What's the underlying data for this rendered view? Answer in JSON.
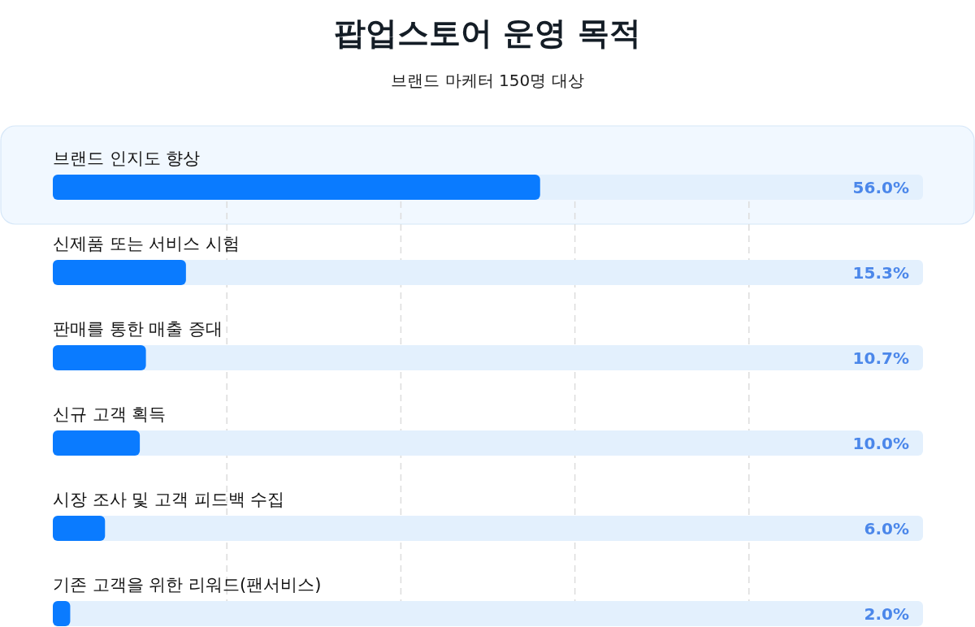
{
  "chart_data": {
    "type": "bar",
    "orientation": "horizontal",
    "title": "팝업스토어 운영 목적",
    "subtitle": "브랜드 마케터 150명 대상",
    "categories": [
      "브랜드 인지도 향상",
      "신제품 또는 서비스 시험",
      "판매를 통한 매출 증대",
      "신규 고객 획득",
      "시장 조사 및 고객 피드백 수집",
      "기존 고객을 위한 리워드(팬서비스)"
    ],
    "values": [
      56.0,
      15.3,
      10.7,
      10.0,
      6.0,
      2.0
    ],
    "value_labels": [
      "56.0%",
      "15.3%",
      "10.7%",
      "10.0%",
      "6.0%",
      "2.0%"
    ],
    "color": "#0a7bff",
    "xlim": [
      0,
      100
    ],
    "xticks": [
      {
        "value": 20,
        "label": null
      },
      {
        "value": 40,
        "label": null
      },
      {
        "value": 60,
        "label": null
      },
      {
        "value": 80,
        "label": null
      }
    ],
    "tick_labels": "y",
    "grid": "x",
    "bands": [
      {
        "axis": "x",
        "from": 0,
        "to": 100,
        "color": "#e3f0fd"
      }
    ]
  }
}
